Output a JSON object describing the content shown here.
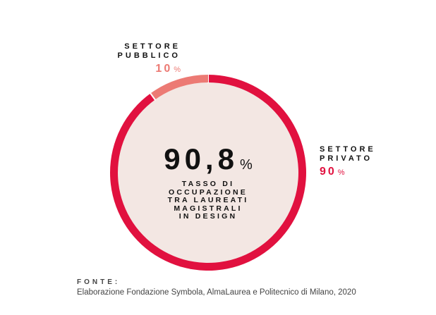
{
  "chart_data": {
    "type": "pie",
    "variant": "donut",
    "categories": [
      "SETTORE PRIVATO",
      "SETTORE PUBBLICO"
    ],
    "values": [
      90,
      10
    ],
    "colors": [
      "#e1113f",
      "#ec7a74"
    ],
    "inner_fill": "#f3e7e3",
    "center_value": "90,8",
    "center_unit": "%",
    "center_caption": [
      "TASSO DI",
      "OCCUPAZIONE",
      "TRA LAUREATI",
      "MAGISTRALI",
      "IN DESIGN"
    ],
    "labels": {
      "private": {
        "line1": "SETTORE",
        "line2": "PRIVATO",
        "value": "90",
        "unit": "%"
      },
      "public": {
        "line1": "SETTORE",
        "line2": "PUBBLICO",
        "value": "10",
        "unit": "%"
      }
    }
  },
  "source": {
    "title": "FONTE:",
    "text": "Elaborazione Fondazione Symbola, AlmaLaurea e Politecnico di Milano, 2020"
  }
}
